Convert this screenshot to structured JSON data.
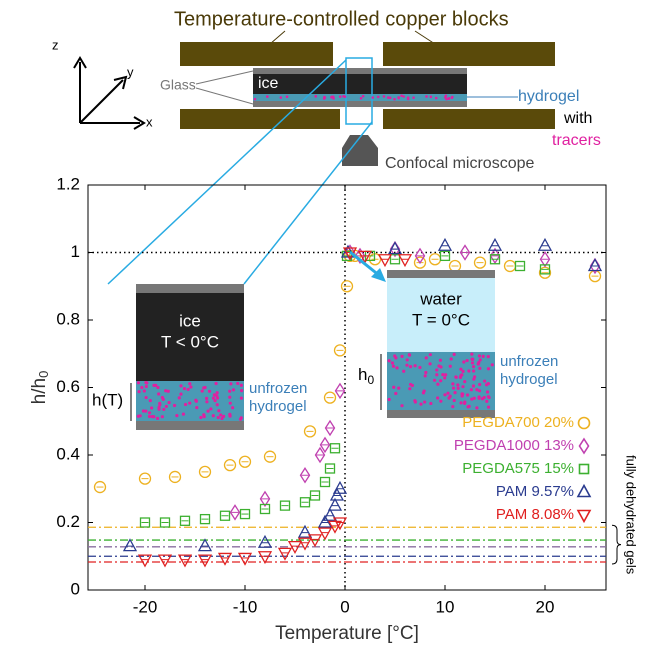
{
  "schematic": {
    "title": "Temperature-controlled copper blocks",
    "glass": "Glass",
    "ice": "ice",
    "hydrogel": "hydrogel",
    "with": "with",
    "tracers": "tracers",
    "microscope": "Confocal microscope",
    "axes": {
      "x": "x",
      "y": "y",
      "z": "z"
    }
  },
  "inset_left": {
    "ice": "ice",
    "temp": "T < 0°C",
    "height": "h(T)",
    "gel_line1": "unfrozen",
    "gel_line2": "hydrogel"
  },
  "inset_right": {
    "water": "water",
    "temp": "T = 0°C",
    "height": {
      "text": "h",
      "subscript": "0"
    },
    "gel_line1": "unfrozen",
    "gel_line2": "hydrogel"
  },
  "chart_data": {
    "type": "scatter",
    "xlabel": "Temperature [°C]",
    "ylabel": {
      "text": "h/h",
      "subscript": "0"
    },
    "xlim": [
      -25.7,
      26.1
    ],
    "ylim": [
      0,
      1.2
    ],
    "xticks": [
      -20,
      -10,
      0,
      10,
      20
    ],
    "yticks": [
      0,
      0.2,
      0.4,
      0.6,
      0.8,
      1,
      1.2
    ],
    "hline": 1,
    "vline": 0,
    "reference_label": "fully dehydrated gels",
    "reference_lines": [
      {
        "color": "#edb120",
        "value": 0.186
      },
      {
        "color": "#3cb030",
        "value": 0.148
      },
      {
        "color": "#8a6fa0",
        "value": 0.128
      },
      {
        "color": "#2a3b8f",
        "value": 0.1
      },
      {
        "color": "#e02020",
        "value": 0.083
      }
    ],
    "legend": "lower right",
    "series": [
      {
        "name": "PEGDA700 20%",
        "color": "#edb120",
        "marker": "circle",
        "x": [
          -24.5,
          -20,
          -17,
          -14,
          -11.5,
          -10,
          -7.5,
          -3.5,
          -1.5,
          -0.5,
          0.2,
          0.5,
          1,
          3,
          7.5,
          9,
          11,
          13.5,
          16.5,
          20,
          25
        ],
        "y": [
          0.305,
          0.33,
          0.335,
          0.35,
          0.37,
          0.38,
          0.395,
          0.47,
          0.57,
          0.71,
          0.9,
          0.99,
          0.99,
          0.98,
          0.97,
          0.98,
          0.96,
          0.97,
          0.96,
          0.94,
          0.93
        ]
      },
      {
        "name": "PEGDA1000 13%",
        "color": "#c040b0",
        "marker": "diamond",
        "x": [
          -11,
          -8,
          -4,
          -2.5,
          -2,
          -1.5,
          -0.5,
          0.5,
          1.5,
          5,
          7.5,
          12,
          15,
          20,
          25
        ],
        "y": [
          0.23,
          0.27,
          0.34,
          0.4,
          0.43,
          0.48,
          0.59,
          1.0,
          0.99,
          1.01,
          0.99,
          1.0,
          0.99,
          0.98,
          0.96
        ]
      },
      {
        "name": "PEGDA575 15%",
        "color": "#3cb030",
        "marker": "square",
        "x": [
          -20,
          -18,
          -16,
          -14,
          -12,
          -10,
          -8,
          -6,
          -4,
          -3,
          -2,
          -1.5,
          -1,
          0.2,
          2.5,
          5,
          10,
          15,
          17.5,
          20
        ],
        "y": [
          0.2,
          0.2,
          0.205,
          0.21,
          0.22,
          0.225,
          0.24,
          0.25,
          0.26,
          0.28,
          0.32,
          0.36,
          0.42,
          0.99,
          0.99,
          0.98,
          0.99,
          0.98,
          0.96,
          0.95
        ]
      },
      {
        "name": "PAM 9.57%",
        "color": "#2a3b8f",
        "marker": "triangle-up",
        "x": [
          -21.5,
          -14,
          -8,
          -4,
          -2,
          -1.5,
          -1,
          -0.8,
          -0.5,
          0.3,
          5,
          10,
          15,
          20,
          25
        ],
        "y": [
          0.13,
          0.13,
          0.14,
          0.17,
          0.2,
          0.22,
          0.25,
          0.28,
          0.3,
          1.0,
          1.01,
          1.02,
          1.02,
          1.02,
          0.96
        ]
      },
      {
        "name": "PAM 8.08%",
        "color": "#e02020",
        "marker": "triangle-down",
        "x": [
          -20,
          -18,
          -16,
          -14,
          -12,
          -10,
          -8,
          -6,
          -5,
          -4,
          -3,
          -2,
          -1,
          -0.5,
          0.5,
          2,
          4,
          6
        ],
        "y": [
          0.09,
          0.09,
          0.09,
          0.09,
          0.095,
          0.095,
          0.1,
          0.11,
          0.13,
          0.14,
          0.15,
          0.17,
          0.19,
          0.2,
          1.0,
          0.99,
          0.98,
          0.98
        ]
      }
    ]
  }
}
